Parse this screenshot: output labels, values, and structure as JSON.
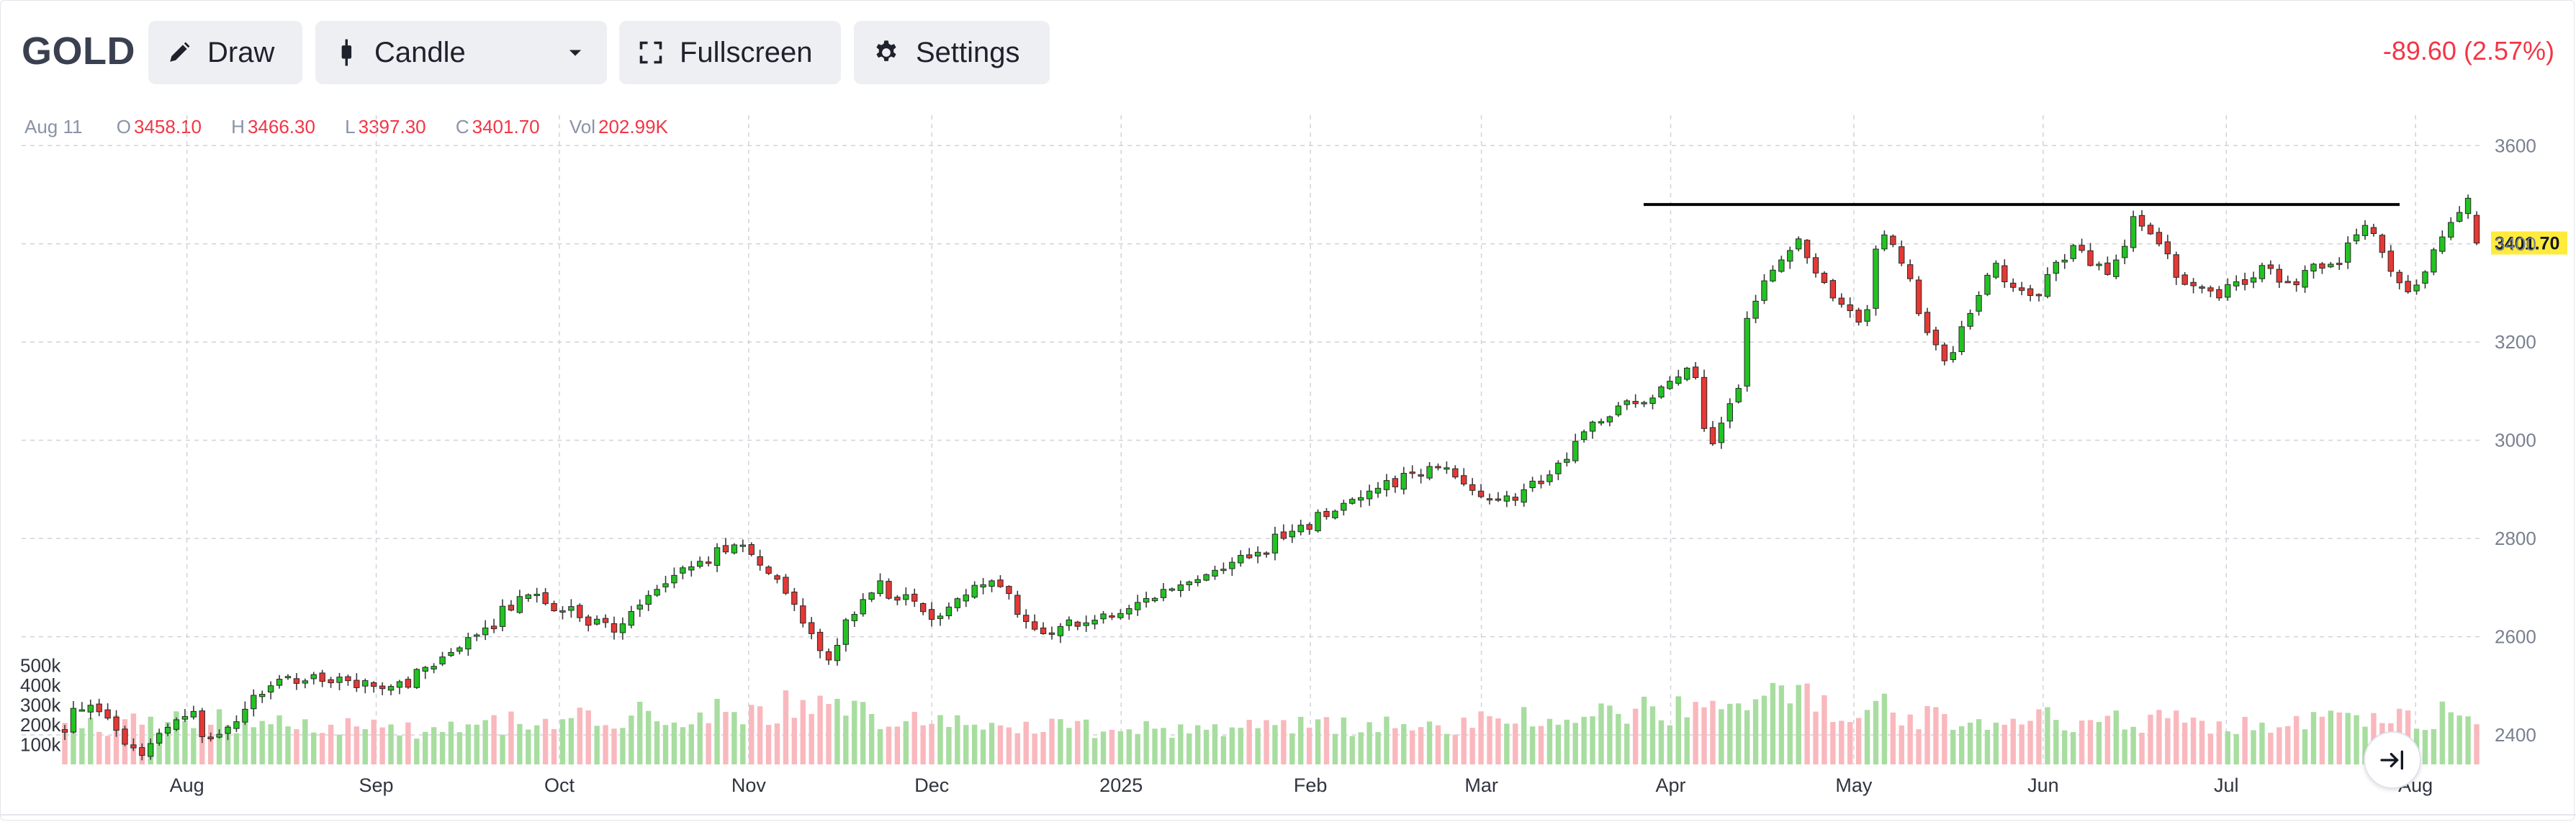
{
  "toolbar": {
    "symbol": "GOLD",
    "draw_label": "Draw",
    "candle_label": "Candle",
    "fullscreen_label": "Fullscreen",
    "settings_label": "Settings",
    "change": "-89.60 (2.57%)"
  },
  "icons": [
    "pencil-icon",
    "candle-icon",
    "chevron-down-icon",
    "fullscreen-icon",
    "gear-icon",
    "scroll-to-latest-icon"
  ],
  "legend": {
    "date": "Aug 11",
    "o_label": "O",
    "o": "3458.10",
    "h_label": "H",
    "h": "3466.30",
    "l_label": "L",
    "l": "3397.30",
    "c_label": "C",
    "c": "3401.70",
    "vol_label": "Vol",
    "vol": "202.99K"
  },
  "colors": {
    "up": "#26a69a",
    "up_body": "#22c322",
    "down_body": "#e53935",
    "vol_up": "#a8dda0",
    "vol_down": "#f9b8bd",
    "negative": "#f23645",
    "last_price_bg": "#ffeb3b"
  },
  "chart_data": {
    "type": "candlestick",
    "x": "date",
    "y_axis": {
      "side": "right",
      "ylim": [
        2340,
        3640
      ],
      "ticks": [
        2400,
        2600,
        2800,
        3000,
        3200,
        3400,
        3600
      ]
    },
    "x_tick_labels": [
      "Aug",
      "Sep",
      "Oct",
      "Nov",
      "Dec",
      "2025",
      "Feb",
      "Mar",
      "Apr",
      "May",
      "Jun",
      "Jul",
      "Aug"
    ],
    "volume_axis": {
      "ticks": [
        "100k",
        "200k",
        "300k",
        "400k",
        "500k"
      ]
    },
    "last_price": "3401.70",
    "horizontal_line": 3480,
    "grid": true,
    "trend": [
      [
        "2024-07-12",
        2410
      ],
      [
        "2024-07-17",
        2470
      ],
      [
        "2024-07-25",
        2365
      ],
      [
        "2024-08-02",
        2445
      ],
      [
        "2024-08-06",
        2395
      ],
      [
        "2024-08-16",
        2505
      ],
      [
        "2024-08-21",
        2515
      ],
      [
        "2024-08-30",
        2505
      ],
      [
        "2024-09-06",
        2505
      ],
      [
        "2024-09-20",
        2620
      ],
      [
        "2024-09-26",
        2685
      ],
      [
        "2024-10-10",
        2620
      ],
      [
        "2024-10-22",
        2740
      ],
      [
        "2024-10-30",
        2785
      ],
      [
        "2024-11-05",
        2735
      ],
      [
        "2024-11-14",
        2560
      ],
      [
        "2024-11-22",
        2710
      ],
      [
        "2024-12-02",
        2640
      ],
      [
        "2024-12-11",
        2720
      ],
      [
        "2024-12-19",
        2605
      ],
      [
        "2025-01-02",
        2660
      ],
      [
        "2025-01-10",
        2700
      ],
      [
        "2025-01-24",
        2780
      ],
      [
        "2025-02-11",
        2900
      ],
      [
        "2025-02-24",
        2955
      ],
      [
        "2025-03-01",
        2860
      ],
      [
        "2025-03-11",
        2915
      ],
      [
        "2025-03-20",
        3040
      ],
      [
        "2025-03-31",
        3110
      ],
      [
        "2025-04-03",
        3150
      ],
      [
        "2025-04-08",
        2985
      ],
      [
        "2025-04-16",
        3330
      ],
      [
        "2025-04-22",
        3410
      ],
      [
        "2025-04-25",
        3320
      ],
      [
        "2025-05-01",
        3240
      ],
      [
        "2025-05-06",
        3420
      ],
      [
        "2025-05-09",
        3330
      ],
      [
        "2025-05-15",
        3170
      ],
      [
        "2025-05-19",
        3230
      ],
      [
        "2025-05-23",
        3360
      ],
      [
        "2025-05-30",
        3290
      ],
      [
        "2025-06-05",
        3390
      ],
      [
        "2025-06-11",
        3340
      ],
      [
        "2025-06-16",
        3450
      ],
      [
        "2025-06-24",
        3320
      ],
      [
        "2025-06-30",
        3300
      ],
      [
        "2025-07-07",
        3350
      ],
      [
        "2025-07-10",
        3320
      ],
      [
        "2025-07-14",
        3350
      ],
      [
        "2025-07-18",
        3355
      ],
      [
        "2025-07-23",
        3430
      ],
      [
        "2025-07-30",
        3300
      ],
      [
        "2025-08-04",
        3380
      ],
      [
        "2025-08-08",
        3490
      ],
      [
        "2025-08-11",
        3401.7
      ]
    ],
    "volume_trend": [
      [
        "2024-07-12",
        190
      ],
      [
        "2024-08-05",
        230
      ],
      [
        "2024-09-10",
        185
      ],
      [
        "2024-11-08",
        290
      ],
      [
        "2024-12-10",
        200
      ],
      [
        "2025-01-15",
        180
      ],
      [
        "2025-03-01",
        210
      ],
      [
        "2025-04-10",
        300
      ],
      [
        "2025-04-22",
        330
      ],
      [
        "2025-05-15",
        240
      ],
      [
        "2025-06-15",
        220
      ],
      [
        "2025-07-20",
        210
      ],
      [
        "2025-08-08",
        260
      ],
      [
        "2025-08-11",
        203
      ]
    ]
  }
}
